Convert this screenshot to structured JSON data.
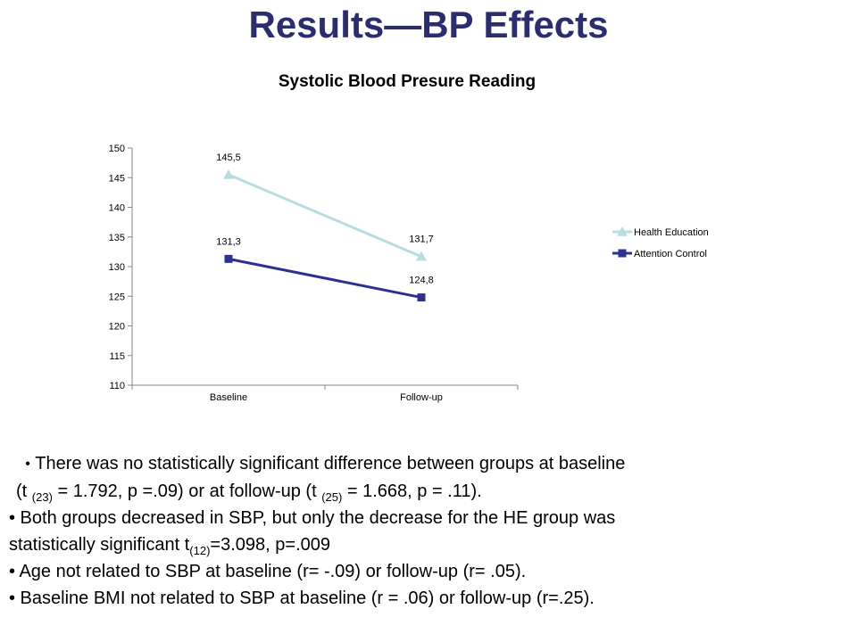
{
  "slide": {
    "title": "Results—BP Effects"
  },
  "chart_data": {
    "type": "line",
    "title": "Systolic Blood Presure Reading",
    "categories": [
      "Baseline",
      "Follow-up"
    ],
    "ylim": [
      110,
      150
    ],
    "yticks": [
      110,
      115,
      120,
      125,
      130,
      135,
      140,
      145,
      150
    ],
    "legend_position": "right",
    "grid": false,
    "series": [
      {
        "name": "Health Education",
        "values": [
          145.5,
          131.7
        ],
        "labels": [
          "145,5",
          "131,7"
        ],
        "color": "#b7dde1",
        "marker": "triangle"
      },
      {
        "name": "Attention Control",
        "values": [
          131.3,
          124.8
        ],
        "labels": [
          "131,3",
          "124,8"
        ],
        "color": "#2e3192",
        "marker": "square"
      }
    ]
  },
  "bullets": {
    "b1_line1": "There was no statistically significant difference between groups at baseline",
    "b1_line2_a": "(t ",
    "b1_line2_sub1": "(23)",
    "b1_line2_b": " = 1.792, p =.09) or at follow-up (t ",
    "b1_line2_sub2": "(25)",
    "b1_line2_c": " = 1.668, p = .11).",
    "b2_line1": "• Both groups decreased in SBP, but only the decrease for the HE group was",
    "b2_line2_a": "statistically significant   t",
    "b2_line2_sub": "(12)",
    "b2_line2_b": "=3.098, p=.009",
    "b3": "• Age not related to SBP at baseline (r= -.09) or follow-up (r= .05).",
    "b4": "• Baseline BMI not related to SBP at baseline (r = .06) or follow-up (r=.25)."
  }
}
